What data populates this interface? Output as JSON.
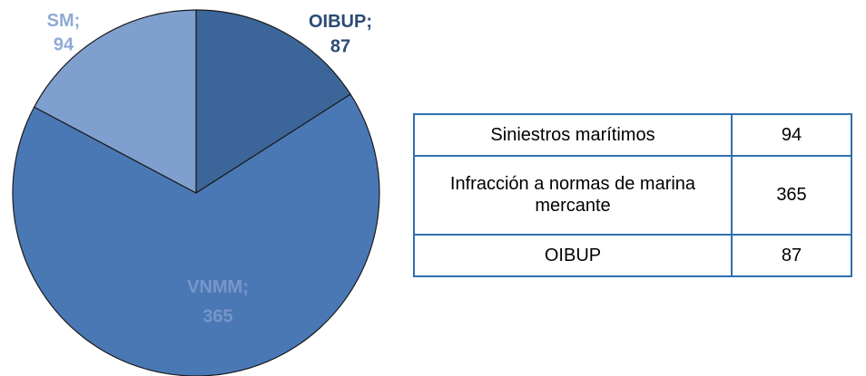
{
  "chart_data": {
    "type": "pie",
    "categories": [
      "OIBUP",
      "VNMM",
      "SM"
    ],
    "values": [
      87,
      365,
      94
    ],
    "colors": [
      "#3c6699",
      "#4a78b5",
      "#7f9fcf"
    ],
    "label_colors": [
      "#2b4a75",
      "#7896c9",
      "#8faad6"
    ],
    "data_label_separator": ";"
  },
  "table": {
    "rows": [
      [
        "Siniestros marítimos",
        "94"
      ],
      [
        "Infracción a normas de marina mercante",
        "365"
      ],
      [
        "OIBUP",
        "87"
      ]
    ]
  }
}
